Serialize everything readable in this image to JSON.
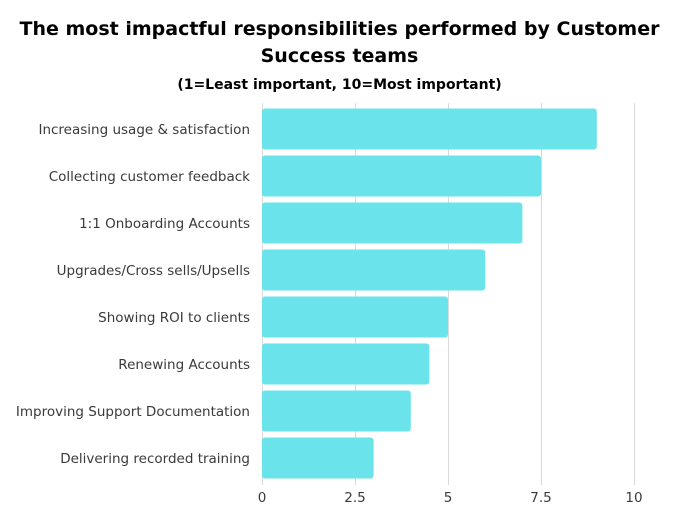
{
  "chart_data": {
    "type": "bar",
    "orientation": "horizontal",
    "title_line1": "The most impactful responsibilities performed by Customer",
    "title_line2": "Success teams",
    "subtitle": "(1=Least important, 10=Most important)",
    "xlabel": "",
    "ylabel": "",
    "categories": [
      "Increasing usage & satisfaction",
      "Collecting customer feedback",
      "1:1 Onboarding Accounts",
      "Upgrades/Cross sells/Upsells",
      "Showing ROI to clients",
      "Renewing Accounts",
      "Improving Support Documentation",
      "Delivering recorded training"
    ],
    "values": [
      9,
      7.5,
      7,
      6,
      5,
      4.5,
      4,
      3
    ],
    "xlim": [
      0,
      10
    ],
    "x_ticks": [
      0,
      2.5,
      5,
      7.5,
      10
    ],
    "x_tick_labels": [
      "0",
      "2.5",
      "5",
      "7.5",
      "10"
    ],
    "grid": true,
    "legend": "none",
    "bar_color": "#6ae3ea",
    "grid_color": "#d9d9d9"
  }
}
